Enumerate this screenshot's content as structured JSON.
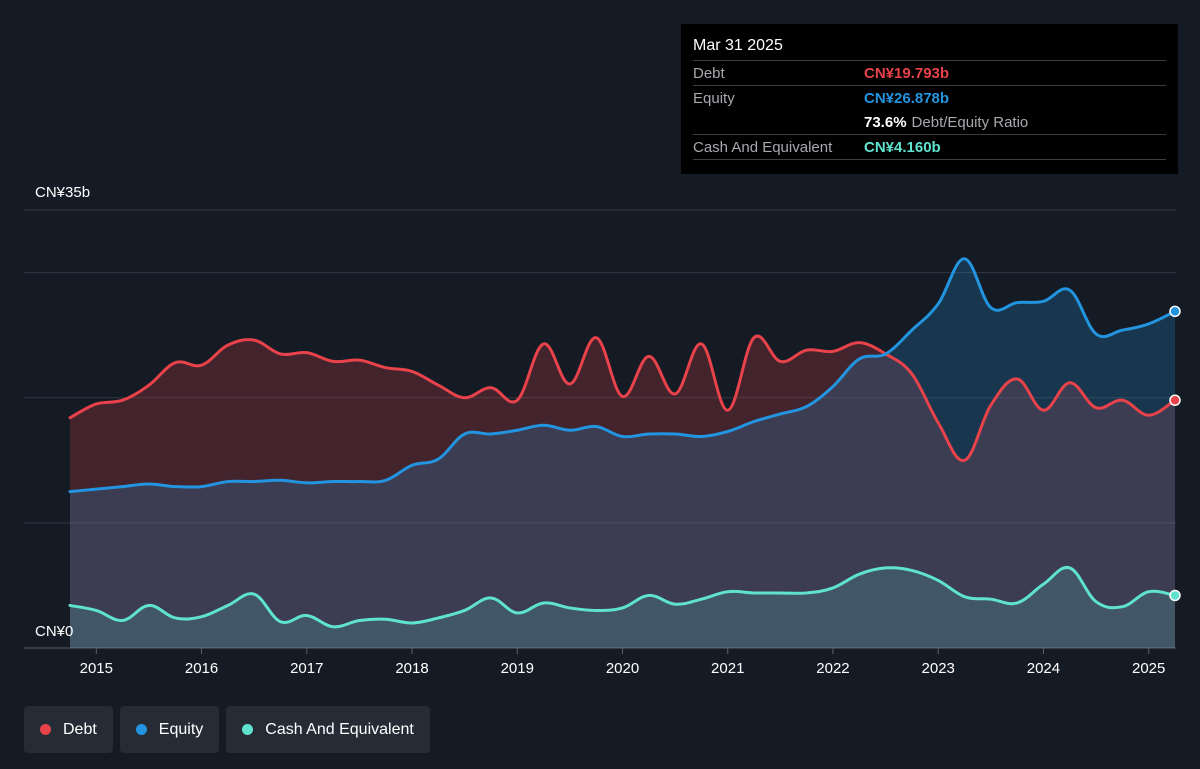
{
  "colors": {
    "debt": "#e8424a",
    "equity": "#2394df",
    "cash": "#5fe3cf",
    "background": "#151b24",
    "grid": "#323843"
  },
  "tooltip": {
    "date": "Mar 31 2025",
    "debt_label": "Debt",
    "debt_value": "CN¥19.793b",
    "equity_label": "Equity",
    "equity_value": "CN¥26.878b",
    "ratio_value": "73.6%",
    "ratio_label": "Debt/Equity Ratio",
    "cash_label": "Cash And Equivalent",
    "cash_value": "CN¥4.160b"
  },
  "legend": [
    {
      "label": "Debt",
      "color": "#e8424a"
    },
    {
      "label": "Equity",
      "color": "#2394df"
    },
    {
      "label": "Cash And Equivalent",
      "color": "#5fe3cf"
    }
  ],
  "chart_data": {
    "type": "area",
    "ylim": [
      0,
      35
    ],
    "xlim": [
      2014.4,
      2025.25
    ],
    "y_top_label": "CN¥35b",
    "y_bottom_label": "CN¥0",
    "x_ticks": [
      "2015",
      "2016",
      "2017",
      "2018",
      "2019",
      "2020",
      "2021",
      "2022",
      "2023",
      "2024",
      "2025"
    ],
    "x_tick_values": [
      2015,
      2016,
      2017,
      2018,
      2019,
      2020,
      2021,
      2022,
      2023,
      2024,
      2025
    ],
    "series": [
      {
        "name": "Debt",
        "key": "debt",
        "points": [
          [
            2014.75,
            18.4
          ],
          [
            2015.0,
            19.5
          ],
          [
            2015.25,
            19.8
          ],
          [
            2015.5,
            21.0
          ],
          [
            2015.75,
            22.8
          ],
          [
            2016.0,
            22.6
          ],
          [
            2016.25,
            24.2
          ],
          [
            2016.5,
            24.6
          ],
          [
            2016.75,
            23.5
          ],
          [
            2017.0,
            23.6
          ],
          [
            2017.25,
            22.9
          ],
          [
            2017.5,
            23.0
          ],
          [
            2017.75,
            22.4
          ],
          [
            2018.0,
            22.1
          ],
          [
            2018.25,
            21.0
          ],
          [
            2018.5,
            20.0
          ],
          [
            2018.75,
            20.8
          ],
          [
            2019.0,
            19.8
          ],
          [
            2019.25,
            24.3
          ],
          [
            2019.5,
            21.1
          ],
          [
            2019.75,
            24.8
          ],
          [
            2020.0,
            20.1
          ],
          [
            2020.25,
            23.3
          ],
          [
            2020.5,
            20.3
          ],
          [
            2020.75,
            24.3
          ],
          [
            2021.0,
            19.0
          ],
          [
            2021.25,
            24.8
          ],
          [
            2021.5,
            22.9
          ],
          [
            2021.75,
            23.8
          ],
          [
            2022.0,
            23.7
          ],
          [
            2022.25,
            24.4
          ],
          [
            2022.5,
            23.5
          ],
          [
            2022.75,
            21.9
          ],
          [
            2023.0,
            18.0
          ],
          [
            2023.25,
            15.0
          ],
          [
            2023.5,
            19.4
          ],
          [
            2023.75,
            21.5
          ],
          [
            2024.0,
            19.0
          ],
          [
            2024.25,
            21.2
          ],
          [
            2024.5,
            19.2
          ],
          [
            2024.75,
            19.8
          ],
          [
            2025.0,
            18.6
          ],
          [
            2025.25,
            19.8
          ]
        ]
      },
      {
        "name": "Equity",
        "key": "equity",
        "points": [
          [
            2014.75,
            12.5
          ],
          [
            2015.0,
            12.7
          ],
          [
            2015.25,
            12.9
          ],
          [
            2015.5,
            13.1
          ],
          [
            2015.75,
            12.9
          ],
          [
            2016.0,
            12.9
          ],
          [
            2016.25,
            13.3
          ],
          [
            2016.5,
            13.3
          ],
          [
            2016.75,
            13.4
          ],
          [
            2017.0,
            13.2
          ],
          [
            2017.25,
            13.3
          ],
          [
            2017.5,
            13.3
          ],
          [
            2017.75,
            13.4
          ],
          [
            2018.0,
            14.6
          ],
          [
            2018.25,
            15.1
          ],
          [
            2018.5,
            17.1
          ],
          [
            2018.75,
            17.1
          ],
          [
            2019.0,
            17.4
          ],
          [
            2019.25,
            17.8
          ],
          [
            2019.5,
            17.4
          ],
          [
            2019.75,
            17.7
          ],
          [
            2020.0,
            16.9
          ],
          [
            2020.25,
            17.1
          ],
          [
            2020.5,
            17.1
          ],
          [
            2020.75,
            16.9
          ],
          [
            2021.0,
            17.3
          ],
          [
            2021.25,
            18.1
          ],
          [
            2021.5,
            18.7
          ],
          [
            2021.75,
            19.3
          ],
          [
            2022.0,
            20.9
          ],
          [
            2022.25,
            23.1
          ],
          [
            2022.5,
            23.5
          ],
          [
            2022.75,
            25.4
          ],
          [
            2023.0,
            27.5
          ],
          [
            2023.25,
            31.1
          ],
          [
            2023.5,
            27.2
          ],
          [
            2023.75,
            27.6
          ],
          [
            2024.0,
            27.7
          ],
          [
            2024.25,
            28.6
          ],
          [
            2024.5,
            25.1
          ],
          [
            2024.75,
            25.4
          ],
          [
            2025.0,
            25.9
          ],
          [
            2025.25,
            26.9
          ]
        ]
      },
      {
        "name": "Cash And Equivalent",
        "key": "cash",
        "points": [
          [
            2014.75,
            3.4
          ],
          [
            2015.0,
            3.0
          ],
          [
            2015.25,
            2.2
          ],
          [
            2015.5,
            3.4
          ],
          [
            2015.75,
            2.4
          ],
          [
            2016.0,
            2.5
          ],
          [
            2016.25,
            3.4
          ],
          [
            2016.5,
            4.3
          ],
          [
            2016.75,
            2.1
          ],
          [
            2017.0,
            2.6
          ],
          [
            2017.25,
            1.7
          ],
          [
            2017.5,
            2.2
          ],
          [
            2017.75,
            2.3
          ],
          [
            2018.0,
            2.0
          ],
          [
            2018.25,
            2.4
          ],
          [
            2018.5,
            3.0
          ],
          [
            2018.75,
            4.0
          ],
          [
            2019.0,
            2.8
          ],
          [
            2019.25,
            3.6
          ],
          [
            2019.5,
            3.2
          ],
          [
            2019.75,
            3.0
          ],
          [
            2020.0,
            3.2
          ],
          [
            2020.25,
            4.2
          ],
          [
            2020.5,
            3.5
          ],
          [
            2020.75,
            3.9
          ],
          [
            2021.0,
            4.5
          ],
          [
            2021.25,
            4.4
          ],
          [
            2021.5,
            4.4
          ],
          [
            2021.75,
            4.4
          ],
          [
            2022.0,
            4.8
          ],
          [
            2022.25,
            5.9
          ],
          [
            2022.5,
            6.4
          ],
          [
            2022.75,
            6.2
          ],
          [
            2023.0,
            5.4
          ],
          [
            2023.25,
            4.1
          ],
          [
            2023.5,
            3.9
          ],
          [
            2023.75,
            3.6
          ],
          [
            2024.0,
            5.1
          ],
          [
            2024.25,
            6.4
          ],
          [
            2024.5,
            3.7
          ],
          [
            2024.75,
            3.3
          ],
          [
            2025.0,
            4.5
          ],
          [
            2025.25,
            4.2
          ]
        ]
      }
    ]
  }
}
